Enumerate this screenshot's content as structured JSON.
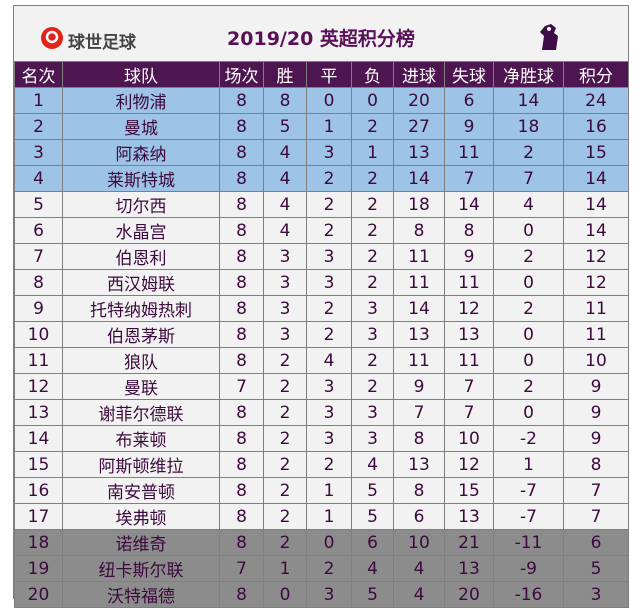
{
  "header": {
    "logo": "球世足球",
    "title": "2019/20 英超积分榜"
  },
  "table": {
    "columns": [
      "名次",
      "球队",
      "场次",
      "胜",
      "平",
      "负",
      "进球",
      "失球",
      "净胜球",
      "积分"
    ],
    "rows": [
      [
        1,
        "利物浦",
        8,
        8,
        0,
        0,
        20,
        6,
        14,
        24
      ],
      [
        2,
        "曼城",
        8,
        5,
        1,
        2,
        27,
        9,
        18,
        16
      ],
      [
        3,
        "阿森纳",
        8,
        4,
        3,
        1,
        13,
        11,
        2,
        15
      ],
      [
        4,
        "莱斯特城",
        8,
        4,
        2,
        2,
        14,
        7,
        7,
        14
      ],
      [
        5,
        "切尔西",
        8,
        4,
        2,
        2,
        18,
        14,
        4,
        14
      ],
      [
        6,
        "水晶宫",
        8,
        4,
        2,
        2,
        8,
        8,
        0,
        14
      ],
      [
        7,
        "伯恩利",
        8,
        3,
        3,
        2,
        11,
        9,
        2,
        12
      ],
      [
        8,
        "西汉姆联",
        8,
        3,
        3,
        2,
        11,
        11,
        0,
        12
      ],
      [
        9,
        "托特纳姆热刺",
        8,
        3,
        2,
        3,
        14,
        12,
        2,
        11
      ],
      [
        10,
        "伯恩茅斯",
        8,
        3,
        2,
        3,
        13,
        13,
        0,
        11
      ],
      [
        11,
        "狼队",
        8,
        2,
        4,
        2,
        11,
        11,
        0,
        10
      ],
      [
        12,
        "曼联",
        7,
        2,
        3,
        2,
        9,
        7,
        2,
        9
      ],
      [
        13,
        "谢菲尔德联",
        8,
        2,
        3,
        3,
        7,
        7,
        0,
        9
      ],
      [
        14,
        "布莱顿",
        8,
        2,
        3,
        3,
        8,
        10,
        -2,
        9
      ],
      [
        15,
        "阿斯顿维拉",
        8,
        2,
        2,
        4,
        13,
        12,
        1,
        8
      ],
      [
        16,
        "南安普顿",
        8,
        2,
        1,
        5,
        8,
        15,
        -7,
        7
      ],
      [
        17,
        "埃弗顿",
        8,
        2,
        1,
        5,
        6,
        13,
        -7,
        7
      ],
      [
        18,
        "诺维奇",
        8,
        2,
        0,
        6,
        10,
        21,
        -11,
        6
      ],
      [
        19,
        "纽卡斯尔联",
        7,
        1,
        2,
        4,
        4,
        13,
        -9,
        5
      ],
      [
        20,
        "沃特福德",
        8,
        0,
        3,
        5,
        4,
        20,
        -16,
        3
      ]
    ]
  }
}
